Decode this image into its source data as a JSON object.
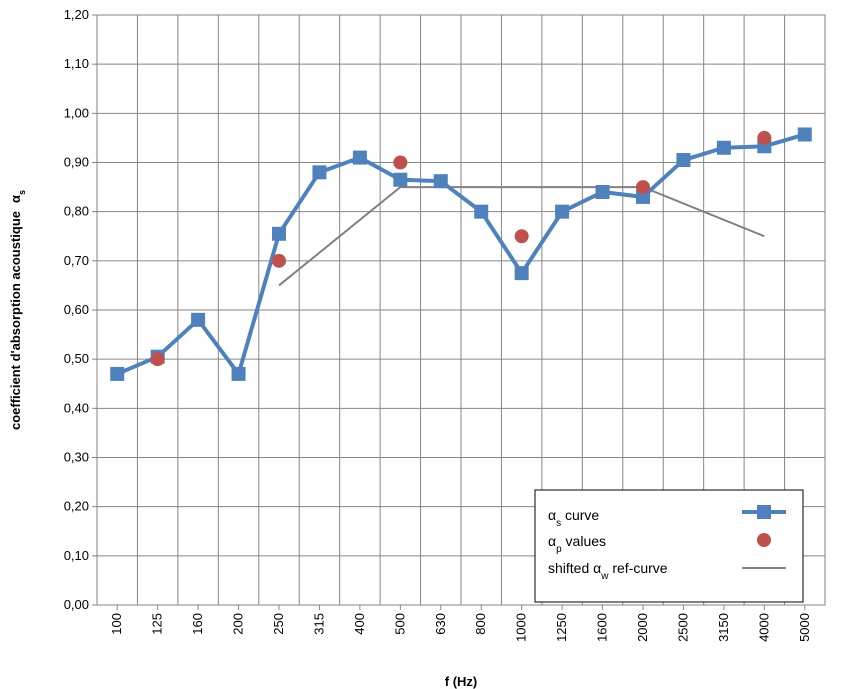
{
  "chart_data": {
    "type": "line",
    "xlabel": "f (Hz)",
    "ylabel": "coefficient d'absorption acoustique",
    "ylabel_symbol": "α",
    "ylabel_subscript": "s",
    "categories": [
      "100",
      "125",
      "160",
      "200",
      "250",
      "315",
      "400",
      "500",
      "630",
      "800",
      "1000",
      "1250",
      "1600",
      "2000",
      "2500",
      "3150",
      "4000",
      "5000"
    ],
    "ylim": [
      0,
      1.2
    ],
    "yticks": [
      "0,00",
      "0,10",
      "0,20",
      "0,30",
      "0,40",
      "0,50",
      "0,60",
      "0,70",
      "0,80",
      "0,90",
      "1,00",
      "1,10",
      "1,20"
    ],
    "grid": true,
    "legend_position": "bottom-right",
    "series": [
      {
        "name_symbol": "α",
        "name_subscript": "s",
        "name_rest": " curve",
        "kind": "line-square",
        "color": "#4F81BD",
        "values": [
          0.47,
          0.505,
          0.58,
          0.47,
          0.755,
          0.88,
          0.91,
          0.865,
          0.862,
          0.8,
          0.675,
          0.8,
          0.84,
          0.83,
          0.905,
          0.93,
          0.933,
          0.957
        ]
      },
      {
        "name_symbol": "α",
        "name_subscript": "p",
        "name_rest": " values",
        "kind": "scatter",
        "color": "#C0504D",
        "points": [
          {
            "x": "125",
            "y": 0.5
          },
          {
            "x": "250",
            "y": 0.7
          },
          {
            "x": "500",
            "y": 0.9
          },
          {
            "x": "1000",
            "y": 0.75
          },
          {
            "x": "2000",
            "y": 0.85
          },
          {
            "x": "4000",
            "y": 0.95
          }
        ]
      },
      {
        "name_prefix": "shifted ",
        "name_symbol": "α",
        "name_subscript": "w",
        "name_rest": " ref-curve",
        "kind": "line",
        "color": "#808080",
        "points": [
          {
            "x": "250",
            "y": 0.65
          },
          {
            "x": "500",
            "y": 0.85
          },
          {
            "x": "2000",
            "y": 0.85
          },
          {
            "x": "4000",
            "y": 0.75
          }
        ]
      }
    ]
  }
}
